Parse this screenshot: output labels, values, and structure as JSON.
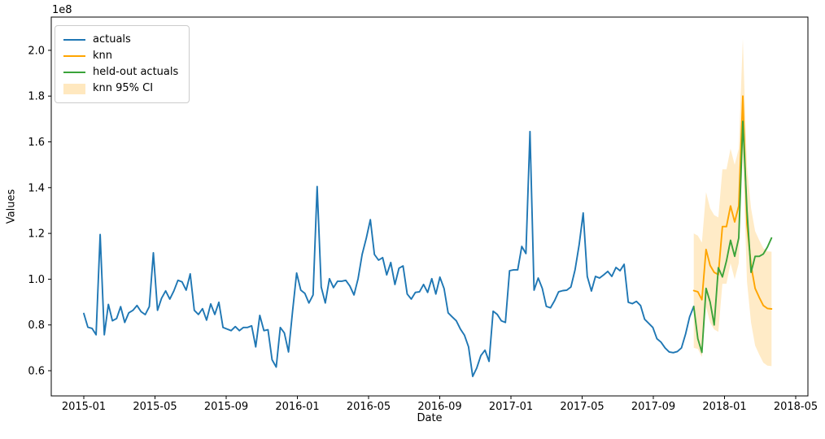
{
  "figure": {
    "background": "#ffffff",
    "offset_text": "1e8"
  },
  "axes": {
    "xlabel": "Date",
    "ylabel": "Values",
    "x_tick_labels": [
      "2015-01",
      "2015-05",
      "2015-09",
      "2016-01",
      "2016-05",
      "2016-09",
      "2017-01",
      "2017-05",
      "2017-09",
      "2018-01",
      "2018-05"
    ],
    "y_tick_labels": [
      "0.6",
      "0.8",
      "1.0",
      "1.2",
      "1.4",
      "1.6",
      "1.8",
      "2.0"
    ]
  },
  "legend": {
    "items": [
      {
        "label": "actuals",
        "color": "#1f77b4",
        "kind": "line"
      },
      {
        "label": "knn",
        "color": "#ffa500",
        "kind": "line"
      },
      {
        "label": "held-out actuals",
        "color": "#3aa33a",
        "kind": "line"
      },
      {
        "label": "knn 95% CI",
        "color": "rgba(255,165,0,0.25)",
        "kind": "patch"
      }
    ]
  },
  "chart_data": {
    "type": "line",
    "title": "",
    "xlabel": "Date",
    "ylabel": "Values",
    "y_unit_multiplier": "1e8",
    "x_frequency": "weekly",
    "x_tick_labels": [
      "2015-01",
      "2015-05",
      "2015-09",
      "2016-01",
      "2016-05",
      "2016-09",
      "2017-01",
      "2017-05",
      "2017-09",
      "2018-01",
      "2018-05"
    ],
    "y_ticks_e8": [
      0.6,
      0.8,
      1.0,
      1.2,
      1.4,
      1.6,
      1.8,
      2.0
    ],
    "ylim_e8": [
      0.49,
      2.15
    ],
    "grid": false,
    "legend_position": "upper left",
    "colors": {
      "actuals": "#1f77b4",
      "knn": "#ffa500",
      "held_out": "#3aa33a",
      "ci_fill": "#ffa500",
      "ci_alpha": 0.22
    },
    "series": [
      {
        "name": "actuals",
        "color": "#1f77b4",
        "start_week_index": 0,
        "values_e8": [
          0.85,
          0.79,
          0.785,
          0.757,
          1.195,
          0.757,
          0.89,
          0.818,
          0.828,
          0.88,
          0.811,
          0.853,
          0.864,
          0.885,
          0.858,
          0.845,
          0.88,
          1.115,
          0.864,
          0.917,
          0.949,
          0.913,
          0.949,
          0.995,
          0.988,
          0.952,
          1.023,
          0.864,
          0.846,
          0.871,
          0.821,
          0.892,
          0.846,
          0.899,
          0.789,
          0.782,
          0.775,
          0.793,
          0.775,
          0.789,
          0.789,
          0.796,
          0.704,
          0.842,
          0.775,
          0.779,
          0.648,
          0.616,
          0.789,
          0.765,
          0.682,
          0.86,
          1.027,
          0.952,
          0.938,
          0.896,
          0.931,
          1.405,
          0.966,
          0.896,
          1.002,
          0.963,
          0.991,
          0.991,
          0.995,
          0.97,
          0.931,
          1.002,
          1.108,
          1.179,
          1.26,
          1.108,
          1.083,
          1.094,
          1.019,
          1.073,
          0.977,
          1.048,
          1.058,
          0.935,
          0.913,
          0.942,
          0.945,
          0.977,
          0.942,
          1.002,
          0.935,
          1.009,
          0.959,
          0.853,
          0.835,
          0.818,
          0.782,
          0.755,
          0.704,
          0.575,
          0.612,
          0.666,
          0.69,
          0.641,
          0.86,
          0.846,
          0.818,
          0.811,
          1.037,
          1.041,
          1.041,
          1.143,
          1.112,
          1.645,
          0.952,
          1.005,
          0.96,
          0.881,
          0.875,
          0.906,
          0.945,
          0.95,
          0.952,
          0.966,
          1.041,
          1.15,
          1.289,
          1.012,
          0.948,
          1.012,
          1.005,
          1.019,
          1.034,
          1.012,
          1.051,
          1.037,
          1.065,
          0.899,
          0.893,
          0.903,
          0.885,
          0.825,
          0.807,
          0.789,
          0.74,
          0.725,
          0.7,
          0.682,
          0.679,
          0.684,
          0.7,
          0.76,
          0.835,
          0.881
        ]
      },
      {
        "name": "knn",
        "color": "#ffa500",
        "start_week_index": 149,
        "values_e8": [
          0.95,
          0.945,
          0.91,
          1.13,
          1.06,
          1.03,
          1.02,
          1.23,
          1.23,
          1.32,
          1.25,
          1.32,
          1.8,
          1.24,
          1.06,
          0.96,
          0.92,
          0.885,
          0.872,
          0.87
        ]
      },
      {
        "name": "held-out actuals",
        "color": "#3aa33a",
        "start_week_index": 149,
        "values_e8": [
          0.88,
          0.74,
          0.68,
          0.96,
          0.9,
          0.8,
          1.05,
          1.01,
          1.08,
          1.17,
          1.1,
          1.18,
          1.69,
          1.3,
          1.03,
          1.1,
          1.1,
          1.11,
          1.14,
          1.18
        ]
      },
      {
        "name": "knn 95% CI",
        "kind": "band",
        "color": "#ffa500",
        "alpha": 0.22,
        "start_week_index": 149,
        "upper_e8": [
          1.2,
          1.19,
          1.16,
          1.38,
          1.31,
          1.28,
          1.27,
          1.48,
          1.48,
          1.57,
          1.5,
          1.57,
          2.05,
          1.49,
          1.31,
          1.21,
          1.17,
          1.135,
          1.122,
          1.12
        ],
        "lower_e8": [
          0.7,
          0.695,
          0.66,
          0.88,
          0.81,
          0.78,
          0.77,
          0.98,
          0.98,
          1.07,
          1.0,
          1.07,
          1.55,
          0.99,
          0.81,
          0.71,
          0.67,
          0.635,
          0.622,
          0.62
        ]
      }
    ]
  }
}
